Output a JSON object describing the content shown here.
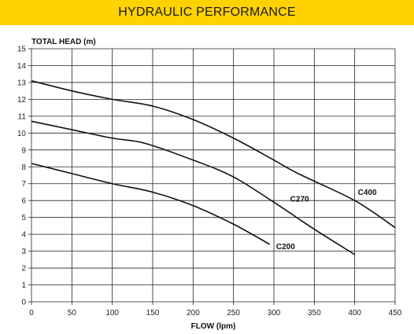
{
  "title": "HYDRAULIC PERFORMANCE",
  "colors": {
    "banner": "#ffd200",
    "line": "#111111",
    "grid": "#222222"
  },
  "chart_data": {
    "type": "line",
    "xlabel": "FLOW (lpm)",
    "ylabel": "TOTAL HEAD (m)",
    "xlim": [
      0,
      450
    ],
    "ylim": [
      0,
      15
    ],
    "xticks": [
      0,
      50,
      100,
      150,
      200,
      250,
      300,
      350,
      400,
      450
    ],
    "yticks": [
      0,
      1,
      2,
      3,
      4,
      5,
      6,
      7,
      8,
      9,
      10,
      11,
      12,
      13,
      14,
      15
    ],
    "grid": true,
    "series": [
      {
        "name": "C200",
        "x": [
          0,
          50,
          100,
          150,
          200,
          250,
          295
        ],
        "y": [
          8.2,
          7.6,
          7.0,
          6.5,
          5.7,
          4.6,
          3.4
        ]
      },
      {
        "name": "C270",
        "x": [
          0,
          50,
          100,
          140,
          200,
          250,
          300,
          350,
          400
        ],
        "y": [
          10.7,
          10.2,
          9.7,
          9.4,
          8.4,
          7.4,
          5.9,
          4.3,
          2.8
        ]
      },
      {
        "name": "C400",
        "x": [
          0,
          50,
          100,
          150,
          200,
          250,
          300,
          330,
          400,
          450
        ],
        "y": [
          13.1,
          12.5,
          12.0,
          11.6,
          10.8,
          9.7,
          8.4,
          7.6,
          6.0,
          4.4
        ]
      }
    ]
  }
}
